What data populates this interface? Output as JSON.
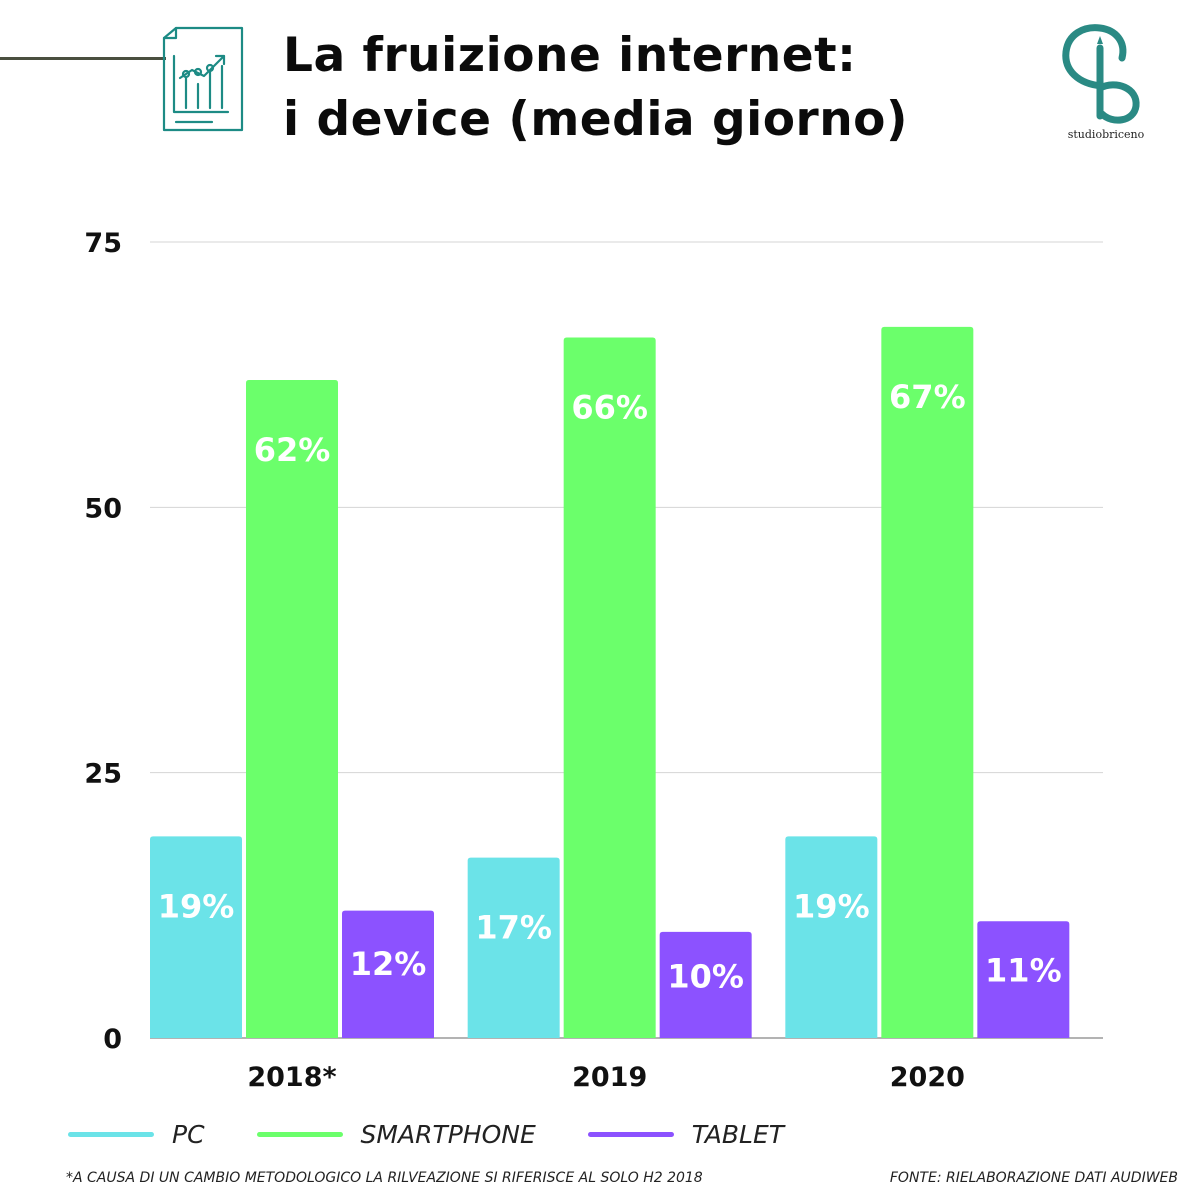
{
  "header": {
    "title_line1": "La fruizione internet:",
    "title_line2": "i device (media giorno)",
    "logo_text": "studiobriceno",
    "icon_color": "#1d8b85",
    "logo_color": "#2a8a84"
  },
  "chart_data": {
    "type": "bar",
    "title": "La fruizione internet: i device (media giorno)",
    "categories": [
      "2018*",
      "2019",
      "2020"
    ],
    "series": [
      {
        "name": "PC",
        "values": [
          19,
          17,
          19
        ],
        "labels": [
          "19%",
          "17%",
          "19%"
        ],
        "color": "#6be3e8"
      },
      {
        "name": "SMARTPHONE",
        "values": [
          62,
          66,
          67
        ],
        "labels": [
          "62%",
          "66%",
          "67%"
        ],
        "color": "#6bff6b"
      },
      {
        "name": "TABLET",
        "values": [
          12,
          10,
          11
        ],
        "labels": [
          "12%",
          "10%",
          "11%"
        ],
        "color": "#8c52ff"
      }
    ],
    "yticks": [
      "0",
      "25",
      "50",
      "75"
    ],
    "ylim": [
      0,
      75
    ],
    "grid": true,
    "legend_position": "bottom-left"
  },
  "footer": {
    "footnote": "*A CAUSA DI UN CAMBIO METODOLOGICO LA RILVEAZIONE SI RIFERISCE AL SOLO H2 2018",
    "source": "FONTE: RIELABORAZIONE DATI AUDIWEB"
  }
}
